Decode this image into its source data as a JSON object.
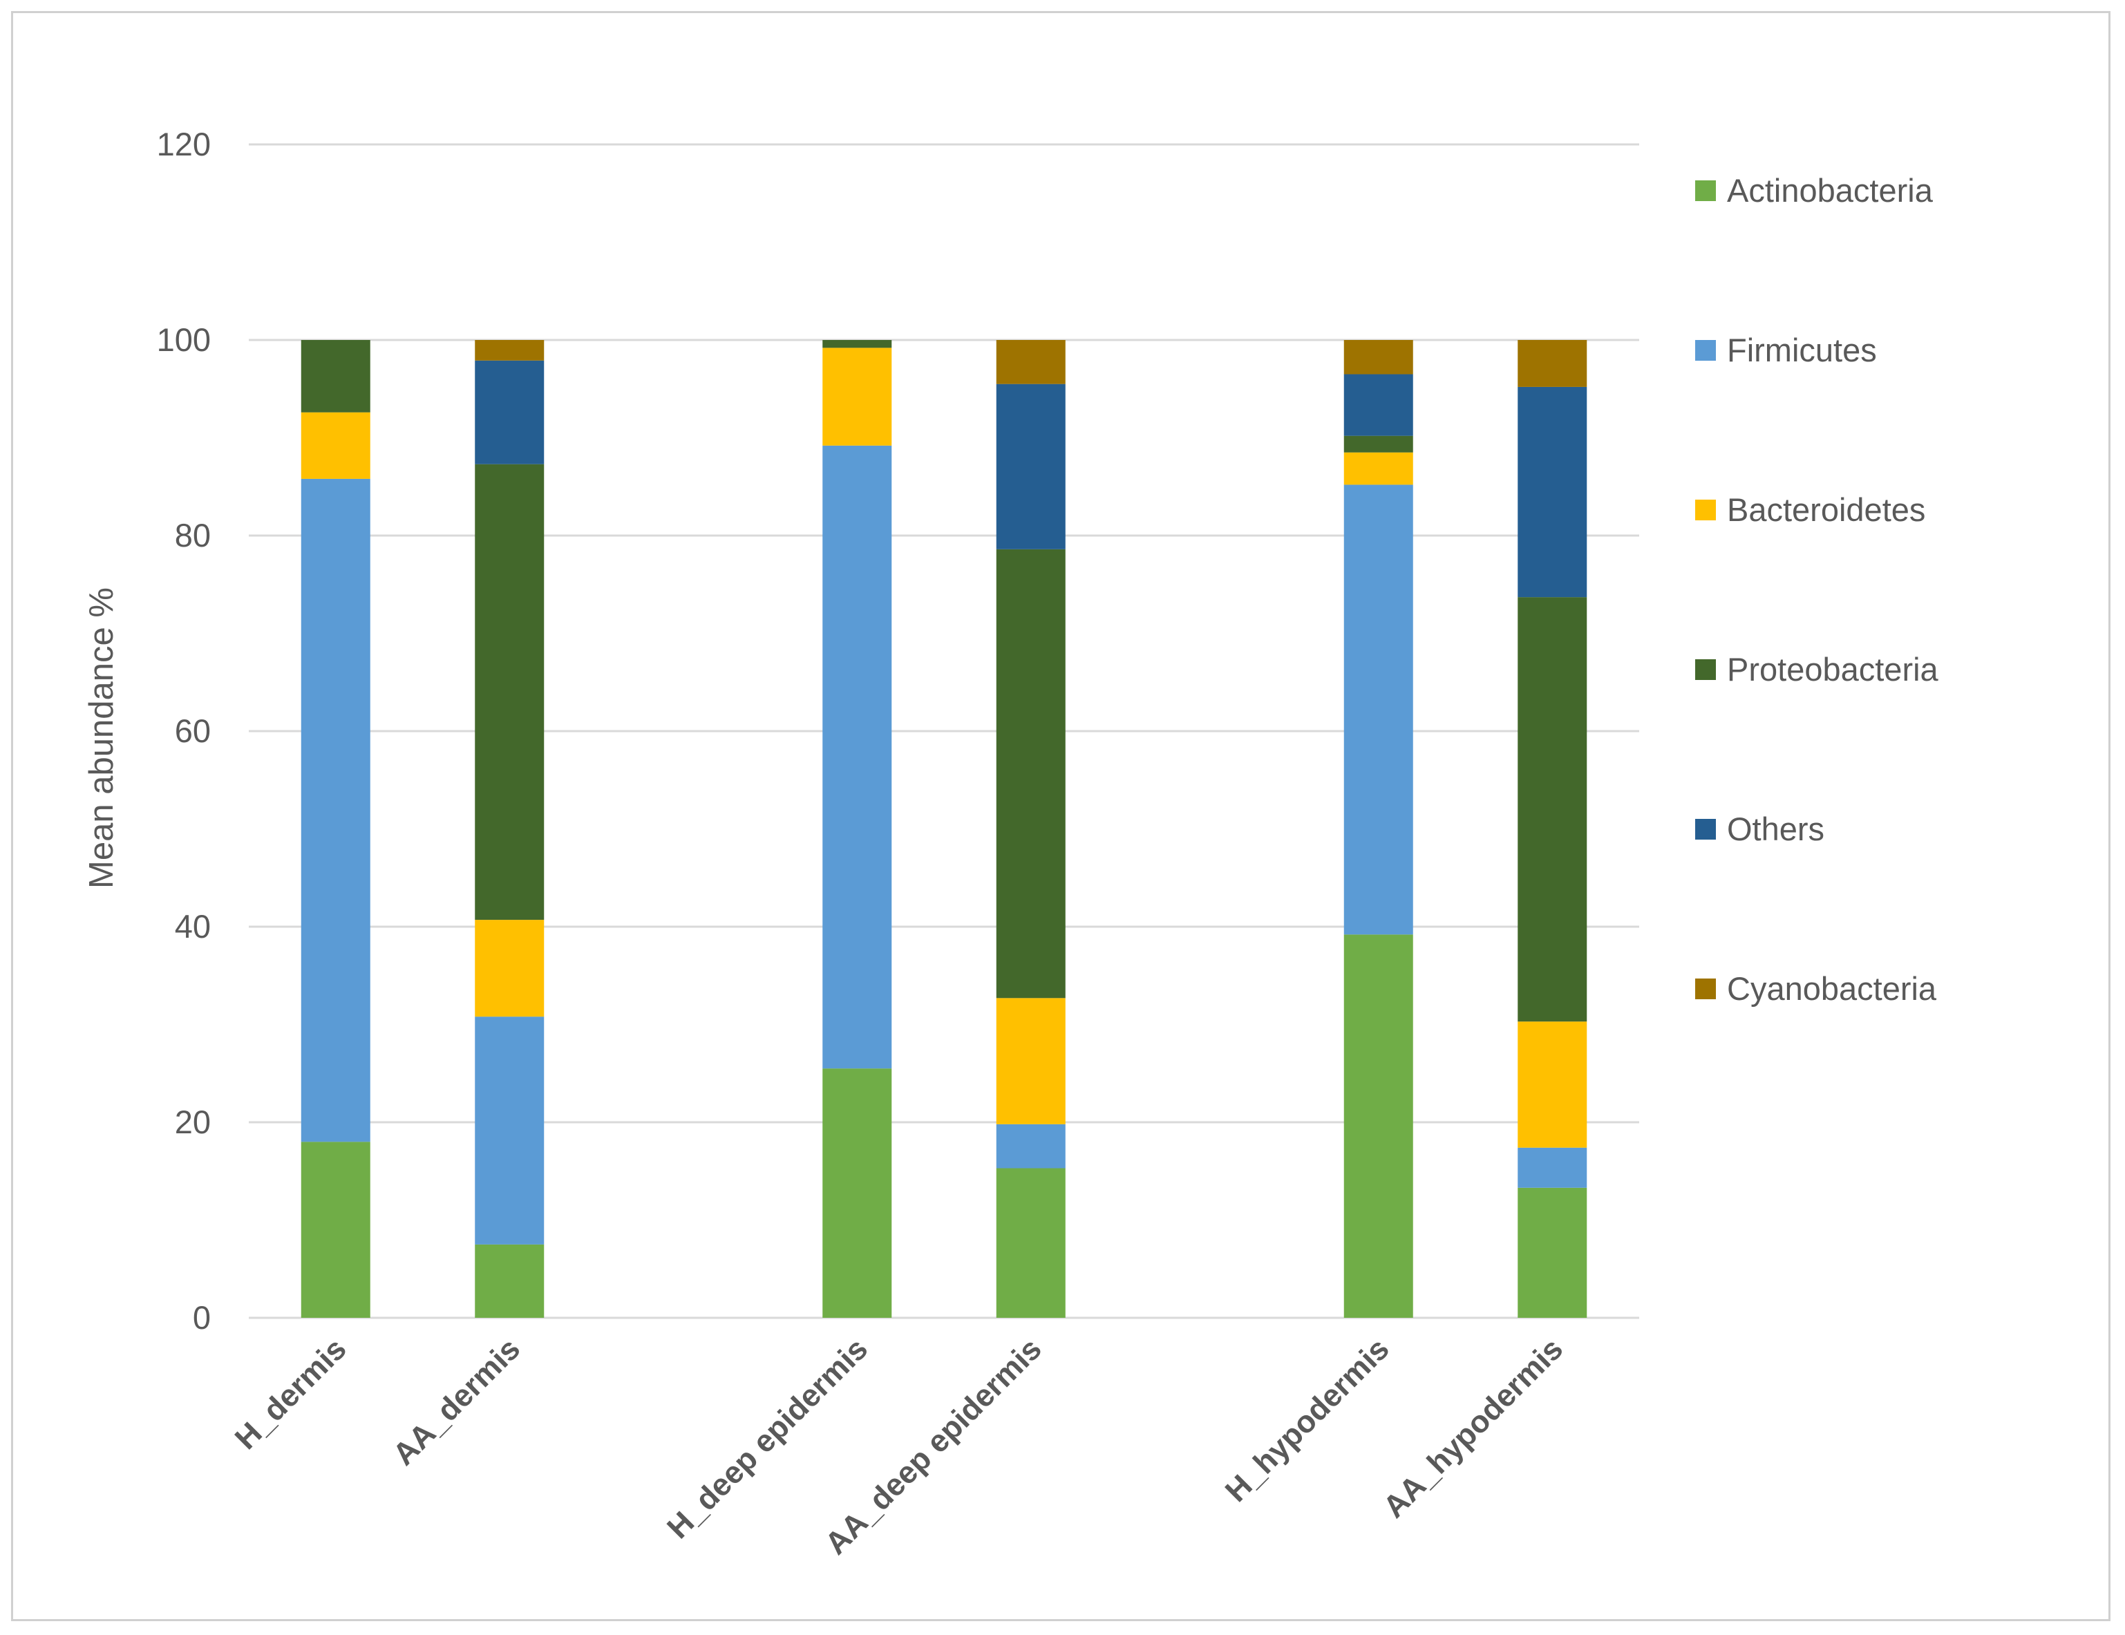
{
  "chart_data": {
    "type": "stacked-bar",
    "title": "",
    "xlabel": "",
    "ylabel": "Mean abundance %",
    "ylim": [
      0,
      120
    ],
    "yticks": [
      0,
      20,
      40,
      60,
      80,
      100,
      120
    ],
    "grid": true,
    "legend_position": "right",
    "categories": [
      "H_dermis",
      "AA_dermis",
      "",
      "H_deep epidermis",
      "AA_deep epidermis",
      "",
      "H_hypodermis",
      "AA_hypodermis"
    ],
    "series": [
      {
        "name": "Actinobacteria",
        "color": "#70AD47",
        "values": [
          18,
          7.5,
          null,
          25.5,
          15.3,
          null,
          39.2,
          13.3
        ]
      },
      {
        "name": "Firmicutes",
        "color": "#5B9BD5",
        "values": [
          67.8,
          23.3,
          null,
          63.7,
          4.5,
          null,
          46,
          4.1
        ]
      },
      {
        "name": "Bacteroidetes",
        "color": "#FFC000",
        "values": [
          6.8,
          9.9,
          null,
          10,
          12.9,
          null,
          3.3,
          12.9
        ]
      },
      {
        "name": "Proteobacteria",
        "color": "#43682B",
        "values": [
          7.4,
          46.6,
          null,
          0.8,
          45.9,
          null,
          1.7,
          43.4
        ]
      },
      {
        "name": "Others",
        "color": "#255E91",
        "values": [
          0,
          10.6,
          null,
          0,
          16.9,
          null,
          6.3,
          21.5
        ]
      },
      {
        "name": "Cyanobacteria",
        "color": "#9E7300",
        "values": [
          0,
          2.1,
          null,
          0,
          4.5,
          null,
          3.5,
          4.8
        ]
      }
    ]
  }
}
